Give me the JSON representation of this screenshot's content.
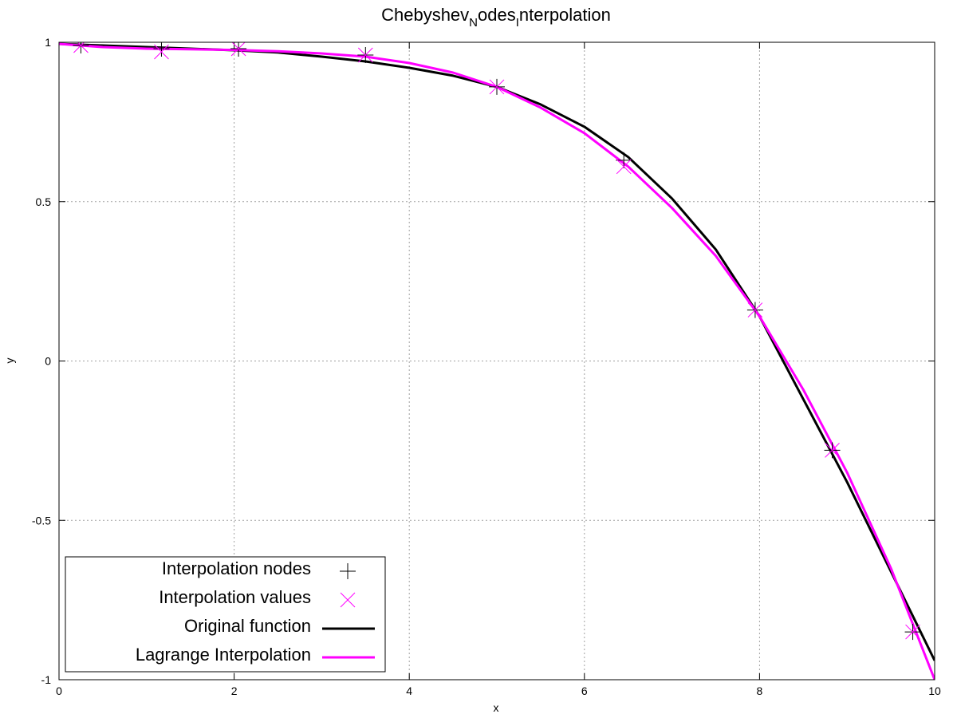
{
  "chart_data": {
    "type": "line",
    "title_parts": [
      "Chebyshev",
      "N",
      "odes",
      "I",
      "nterpolation"
    ],
    "xlabel": "x",
    "ylabel": "y",
    "xlim": [
      0,
      10
    ],
    "ylim": [
      -1,
      1
    ],
    "xticks": [
      0,
      2,
      4,
      6,
      8,
      10
    ],
    "xtick_labels": [
      "0",
      "2",
      "4",
      "6",
      "8",
      "10"
    ],
    "yticks": [
      -1,
      -0.5,
      0,
      0.5,
      1
    ],
    "ytick_labels": [
      "-1",
      "-0.5",
      "0",
      "0.5",
      "1"
    ],
    "grid": true,
    "legend_position": "bottom-left",
    "series": [
      {
        "name": "Interpolation nodes",
        "kind": "points",
        "marker": "plus",
        "color": "#000000",
        "x": [
          0.25,
          1.17,
          2.05,
          3.5,
          5.0,
          6.45,
          7.95,
          8.83,
          9.75
        ],
        "y": [
          0.99,
          0.98,
          0.98,
          0.96,
          0.86,
          0.63,
          0.16,
          -0.28,
          -0.85
        ]
      },
      {
        "name": "Interpolation values",
        "kind": "points",
        "marker": "cross",
        "color": "#ff00ff",
        "x": [
          0.25,
          1.17,
          2.05,
          3.5,
          5.0,
          6.45,
          7.95,
          8.83,
          9.75
        ],
        "y": [
          0.99,
          0.97,
          0.98,
          0.96,
          0.86,
          0.61,
          0.16,
          -0.28,
          -0.85
        ]
      },
      {
        "name": "Original function",
        "kind": "line",
        "color": "#000000",
        "x": [
          0,
          0.5,
          1,
          1.5,
          2,
          2.5,
          3,
          3.5,
          4,
          4.5,
          5,
          5.5,
          6,
          6.5,
          7,
          7.5,
          8,
          8.5,
          9,
          9.5,
          10
        ],
        "y": [
          0.995,
          0.99,
          0.985,
          0.98,
          0.975,
          0.968,
          0.955,
          0.94,
          0.92,
          0.895,
          0.86,
          0.805,
          0.735,
          0.64,
          0.51,
          0.35,
          0.14,
          -0.12,
          -0.38,
          -0.66,
          -0.94
        ]
      },
      {
        "name": "Lagrange Interpolation",
        "kind": "line",
        "color": "#ff00ff",
        "x": [
          0,
          0.5,
          1,
          1.5,
          2,
          2.5,
          3,
          3.5,
          4,
          4.5,
          5,
          5.5,
          6,
          6.5,
          7,
          7.5,
          8,
          8.5,
          9,
          9.5,
          10
        ],
        "y": [
          0.995,
          0.985,
          0.98,
          0.978,
          0.976,
          0.972,
          0.965,
          0.955,
          0.935,
          0.905,
          0.86,
          0.795,
          0.715,
          0.61,
          0.48,
          0.33,
          0.14,
          -0.09,
          -0.35,
          -0.65,
          -1.0
        ]
      }
    ]
  }
}
